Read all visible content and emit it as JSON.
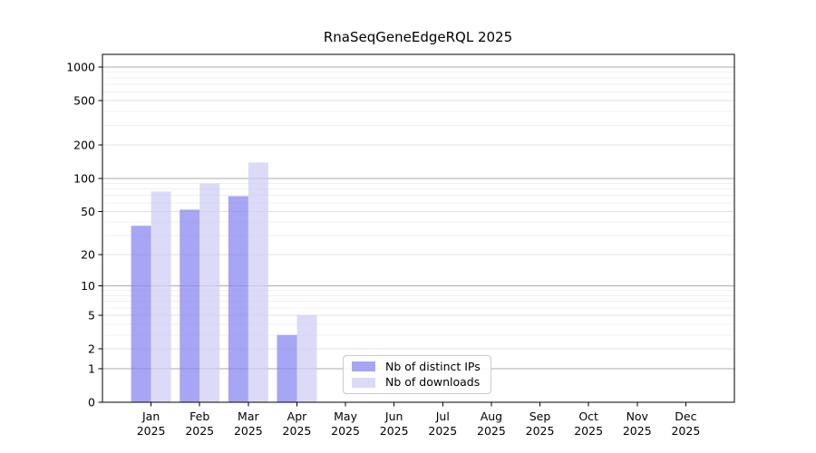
{
  "title": "RnaSeqGeneEdgeRQL 2025",
  "chart_data": {
    "type": "bar",
    "title": "RnaSeqGeneEdgeRQL 2025",
    "x_months": [
      "Jan",
      "Feb",
      "Mar",
      "Apr",
      "May",
      "Jun",
      "Jul",
      "Aug",
      "Sep",
      "Oct",
      "Nov",
      "Dec"
    ],
    "x_year": "2025",
    "series": [
      {
        "name": "Nb of distinct IPs",
        "color": "#a6a6f4",
        "values": [
          37,
          52,
          69,
          3,
          0,
          0,
          0,
          0,
          0,
          0,
          0,
          0
        ]
      },
      {
        "name": "Nb of downloads",
        "color": "#dbdbf8",
        "values": [
          76,
          90,
          139,
          5,
          0,
          0,
          0,
          0,
          0,
          0,
          0,
          0
        ]
      }
    ],
    "y_ticks": [
      0,
      1,
      2,
      5,
      10,
      20,
      50,
      100,
      200,
      500,
      1000
    ],
    "y_scale": "log10(value+1)",
    "ylim": [
      0,
      1300
    ],
    "grid": true,
    "legend_position": "lower center",
    "xlabel": "",
    "ylabel": ""
  },
  "colors": {
    "bar_distinct_ips": "#a6a6f4",
    "bar_downloads": "#dbdbf8",
    "grid_major": "#ababab",
    "grid_medium": "#e2e2e2",
    "grid_minor": "#f0f0f0",
    "axis": "#000000",
    "legend_border": "#cbcbcb",
    "background": "#ffffff"
  }
}
